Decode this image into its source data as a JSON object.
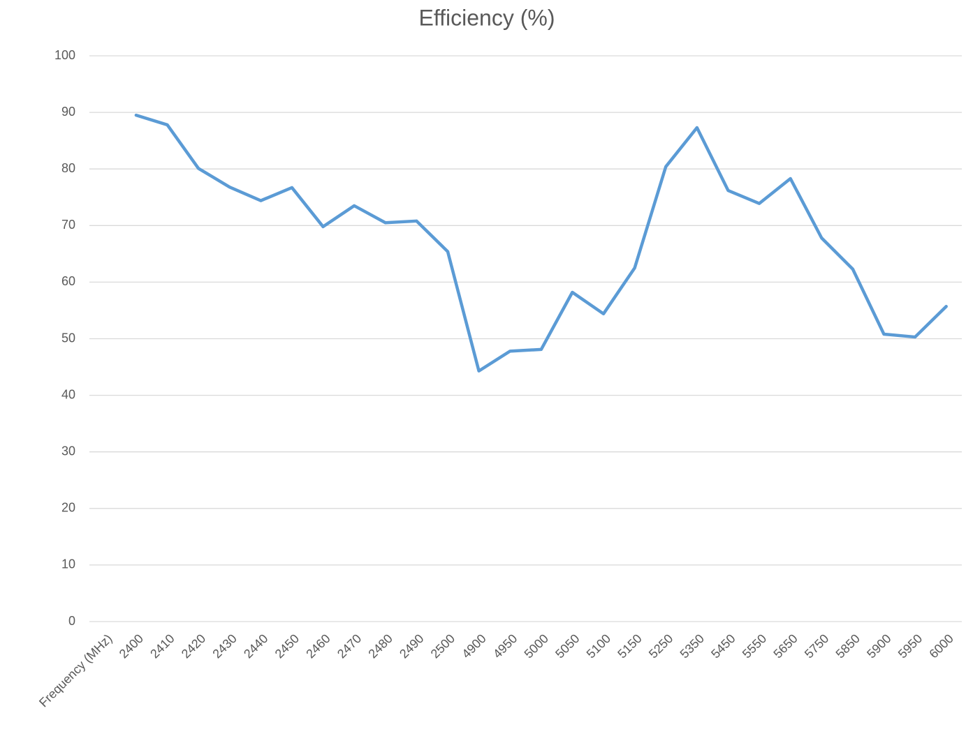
{
  "chart_data": {
    "type": "line",
    "title": "Efficiency (%)",
    "categories": [
      "Frequency  (MHz)",
      "2400",
      "2410",
      "2420",
      "2430",
      "2440",
      "2450",
      "2460",
      "2470",
      "2480",
      "2490",
      "2500",
      "4900",
      "4950",
      "5000",
      "5050",
      "5100",
      "5150",
      "5250",
      "5350",
      "5450",
      "5550",
      "5650",
      "5750",
      "5850",
      "5900",
      "5950",
      "6000"
    ],
    "series": [
      {
        "name": "Efficiency (%)",
        "color": "#5b9bd5",
        "values": [
          null,
          89.5,
          87.8,
          80.1,
          76.8,
          74.4,
          76.7,
          69.8,
          73.5,
          70.5,
          70.8,
          65.4,
          44.3,
          47.8,
          48.1,
          58.2,
          54.4,
          62.5,
          80.4,
          87.3,
          76.2,
          73.9,
          78.3,
          67.8,
          62.3,
          50.8,
          50.3,
          55.7
        ]
      }
    ],
    "ylim": [
      0,
      100
    ],
    "yticks": [
      0,
      10,
      20,
      30,
      40,
      50,
      60,
      70,
      80,
      90,
      100
    ],
    "grid": true
  }
}
